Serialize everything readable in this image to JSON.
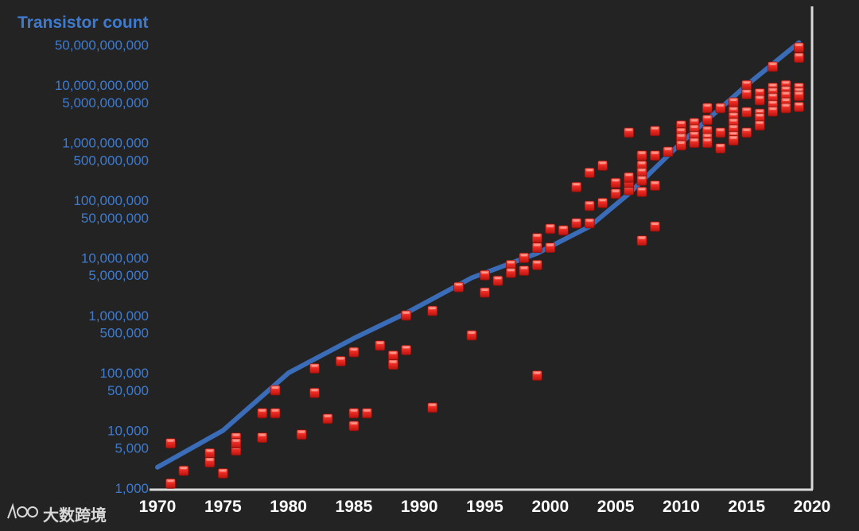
{
  "chart_data": {
    "type": "scatter",
    "title": "Transistor count",
    "xlabel": "",
    "ylabel": "",
    "y_scale": "log",
    "xlim": [
      1970,
      2020
    ],
    "ylim": [
      1000,
      70000000000
    ],
    "grid": false,
    "legend": "none",
    "x_ticks": [
      "1970",
      "1975",
      "1980",
      "1985",
      "1990",
      "1995",
      "2000",
      "2005",
      "2010",
      "2015",
      "2020"
    ],
    "y_ticks": [
      {
        "value": 50000000000,
        "label": "50,000,000,000"
      },
      {
        "value": 10000000000,
        "label": "10,000,000,000"
      },
      {
        "value": 5000000000,
        "label": "5,000,000,000"
      },
      {
        "value": 1000000000,
        "label": "1,000,000,000"
      },
      {
        "value": 500000000,
        "label": "500,000,000"
      },
      {
        "value": 100000000,
        "label": "100,000,000"
      },
      {
        "value": 50000000,
        "label": "50,000,000"
      },
      {
        "value": 10000000,
        "label": "10,000,000"
      },
      {
        "value": 5000000,
        "label": "5,000,000"
      },
      {
        "value": 1000000,
        "label": "1,000,000"
      },
      {
        "value": 500000,
        "label": "500,000"
      },
      {
        "value": 100000,
        "label": "100,000"
      },
      {
        "value": 50000,
        "label": "50,000"
      },
      {
        "value": 10000,
        "label": "10,000"
      },
      {
        "value": 5000,
        "label": "5,000"
      },
      {
        "value": 1000,
        "label": "1,000"
      }
    ],
    "series": [
      {
        "kind": "line",
        "color": "#3a6cb8",
        "points": [
          [
            1970,
            2300
          ],
          [
            1975,
            10000
          ],
          [
            1980,
            100000
          ],
          [
            1985,
            400000
          ],
          [
            1989,
            1100000
          ],
          [
            1994,
            4500000
          ],
          [
            1999,
            12000000
          ],
          [
            2003,
            35000000
          ],
          [
            2006,
            130000000
          ],
          [
            2010,
            1000000000
          ],
          [
            2015,
            10000000000
          ],
          [
            2019,
            55000000000
          ]
        ]
      },
      {
        "kind": "scatter",
        "color": "#e5231d",
        "points": [
          [
            1971,
            6000
          ],
          [
            1971,
            1200
          ],
          [
            1972,
            2000
          ],
          [
            1974,
            4000
          ],
          [
            1974,
            2800
          ],
          [
            1975,
            1800
          ],
          [
            1976,
            7500
          ],
          [
            1976,
            4500
          ],
          [
            1976,
            6000
          ],
          [
            1978,
            20000
          ],
          [
            1978,
            7500
          ],
          [
            1979,
            50000
          ],
          [
            1979,
            20000
          ],
          [
            1981,
            8500
          ],
          [
            1982,
            120000
          ],
          [
            1982,
            45000
          ],
          [
            1983,
            16000
          ],
          [
            1984,
            160000
          ],
          [
            1985,
            230000
          ],
          [
            1985,
            20000
          ],
          [
            1985,
            12000
          ],
          [
            1986,
            20000
          ],
          [
            1987,
            300000
          ],
          [
            1988,
            200000
          ],
          [
            1988,
            140000
          ],
          [
            1989,
            1000000
          ],
          [
            1989,
            250000
          ],
          [
            1991,
            1200000
          ],
          [
            1991,
            25000
          ],
          [
            1993,
            3100000
          ],
          [
            1994,
            450000
          ],
          [
            1995,
            5000000
          ],
          [
            1995,
            2500000
          ],
          [
            1996,
            4000000
          ],
          [
            1997,
            7500000
          ],
          [
            1997,
            5500000
          ],
          [
            1998,
            6000000
          ],
          [
            1998,
            10000000
          ],
          [
            1999,
            7500000
          ],
          [
            1999,
            22000000
          ],
          [
            1999,
            15000000
          ],
          [
            1999,
            90000
          ],
          [
            2000,
            15000000
          ],
          [
            2000,
            32000000
          ],
          [
            2001,
            30000000
          ],
          [
            2002,
            40000000
          ],
          [
            2002,
            170000000
          ],
          [
            2003,
            40000000
          ],
          [
            2003,
            80000000
          ],
          [
            2003,
            300000000
          ],
          [
            2004,
            90000000
          ],
          [
            2004,
            400000000
          ],
          [
            2005,
            200000000
          ],
          [
            2005,
            130000000
          ],
          [
            2006,
            150000000
          ],
          [
            2006,
            200000000
          ],
          [
            2006,
            250000000
          ],
          [
            2006,
            1500000000
          ],
          [
            2007,
            600000000
          ],
          [
            2007,
            400000000
          ],
          [
            2007,
            300000000
          ],
          [
            2007,
            220000000
          ],
          [
            2007,
            140000000
          ],
          [
            2007,
            20000000
          ],
          [
            2008,
            1600000000
          ],
          [
            2008,
            600000000
          ],
          [
            2008,
            180000000
          ],
          [
            2008,
            35000000
          ],
          [
            2009,
            700000000
          ],
          [
            2010,
            2000000000
          ],
          [
            2010,
            1500000000
          ],
          [
            2010,
            1200000000
          ],
          [
            2010,
            900000000
          ],
          [
            2011,
            2200000000
          ],
          [
            2011,
            1700000000
          ],
          [
            2011,
            1300000000
          ],
          [
            2011,
            1000000000
          ],
          [
            2012,
            4000000000
          ],
          [
            2012,
            2500000000
          ],
          [
            2012,
            1600000000
          ],
          [
            2012,
            1200000000
          ],
          [
            2012,
            1000000000
          ],
          [
            2013,
            4000000000
          ],
          [
            2013,
            1500000000
          ],
          [
            2013,
            800000000
          ],
          [
            2014,
            5000000000
          ],
          [
            2014,
            3500000000
          ],
          [
            2014,
            2800000000
          ],
          [
            2014,
            2200000000
          ],
          [
            2014,
            1700000000
          ],
          [
            2014,
            1300000000
          ],
          [
            2014,
            1100000000
          ],
          [
            2015,
            10000000000
          ],
          [
            2015,
            7000000000
          ],
          [
            2015,
            3400000000
          ],
          [
            2015,
            1500000000
          ],
          [
            2016,
            7200000000
          ],
          [
            2016,
            5500000000
          ],
          [
            2016,
            3200000000
          ],
          [
            2016,
            2700000000
          ],
          [
            2016,
            2000000000
          ],
          [
            2017,
            21000000000
          ],
          [
            2017,
            9000000000
          ],
          [
            2017,
            7500000000
          ],
          [
            2017,
            6000000000
          ],
          [
            2017,
            4500000000
          ],
          [
            2017,
            3500000000
          ],
          [
            2018,
            10000000000
          ],
          [
            2018,
            8000000000
          ],
          [
            2018,
            6500000000
          ],
          [
            2018,
            5000000000
          ],
          [
            2018,
            4000000000
          ],
          [
            2019,
            45000000000
          ],
          [
            2019,
            30000000000
          ],
          [
            2019,
            9000000000
          ],
          [
            2019,
            7500000000
          ],
          [
            2019,
            6500000000
          ],
          [
            2019,
            4200000000
          ]
        ]
      }
    ]
  },
  "watermark": {
    "text": "大数跨境"
  }
}
